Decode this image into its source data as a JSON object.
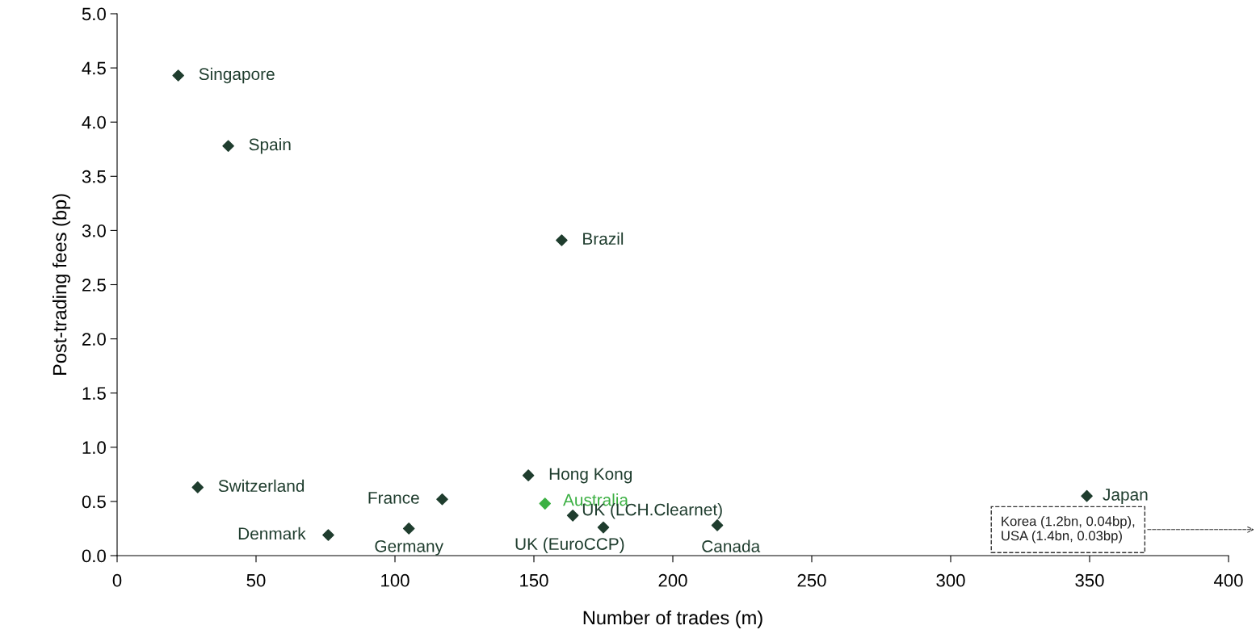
{
  "chart_data": {
    "type": "scatter",
    "xlabel": "Number of trades (m)",
    "ylabel": "Post-trading fees (bp)",
    "xlim": [
      0,
      400
    ],
    "xticks": [
      0,
      50,
      100,
      150,
      200,
      250,
      300,
      350,
      400
    ],
    "ylim": [
      0,
      5.0
    ],
    "yticks": [
      {
        "value": 0,
        "label": "0.0"
      },
      {
        "value": 0.5,
        "label": "0.5"
      },
      {
        "value": 1,
        "label": "1.0"
      },
      {
        "value": 1.5,
        "label": "1.5"
      },
      {
        "value": 2,
        "label": "2.0"
      },
      {
        "value": 2.5,
        "label": "2.5"
      },
      {
        "value": 3,
        "label": "3.0"
      },
      {
        "value": 3.5,
        "label": "3.5"
      },
      {
        "value": 4,
        "label": "4.0"
      },
      {
        "value": 4.5,
        "label": "4.5"
      },
      {
        "value": 5,
        "label": "5.0"
      }
    ],
    "grid": false,
    "legend": false,
    "marker": "diamond",
    "series": [
      {
        "name": "Singapore",
        "color": "#1f3d2e",
        "x": [
          22
        ],
        "values": [
          4.43
        ]
      },
      {
        "name": "Spain",
        "color": "#1f3d2e",
        "x": [
          40
        ],
        "values": [
          3.78
        ]
      },
      {
        "name": "Brazil",
        "color": "#1f3d2e",
        "x": [
          160
        ],
        "values": [
          2.91
        ]
      },
      {
        "name": "Switzerland",
        "color": "#1f3d2e",
        "x": [
          29
        ],
        "values": [
          0.63
        ]
      },
      {
        "name": "France",
        "color": "#1f3d2e",
        "x": [
          117
        ],
        "values": [
          0.52
        ]
      },
      {
        "name": "Hong Kong",
        "color": "#1f3d2e",
        "x": [
          148
        ],
        "values": [
          0.74
        ]
      },
      {
        "name": "Australia",
        "color": "#3cb043",
        "x": [
          154
        ],
        "values": [
          0.48
        ]
      },
      {
        "name": "UK (LCH.Clearnet)",
        "color": "#1f3d2e",
        "x": [
          164
        ],
        "values": [
          0.37
        ]
      },
      {
        "name": "UK (EuroCCP)",
        "color": "#1f3d2e",
        "x": [
          175
        ],
        "values": [
          0.26
        ]
      },
      {
        "name": "Canada",
        "color": "#1f3d2e",
        "x": [
          216
        ],
        "values": [
          0.28
        ]
      },
      {
        "name": "Japan",
        "color": "#1f3d2e",
        "x": [
          349
        ],
        "values": [
          0.55
        ]
      },
      {
        "name": "Denmark",
        "color": "#1f3d2e",
        "x": [
          76
        ],
        "values": [
          0.19
        ]
      },
      {
        "name": "Germany",
        "color": "#1f3d2e",
        "x": [
          105
        ],
        "values": [
          0.25
        ]
      }
    ],
    "annotations": [
      "Korea (1.2bn, 0.04bp),\nUSA (1.4bn, 0.03bp)"
    ]
  }
}
